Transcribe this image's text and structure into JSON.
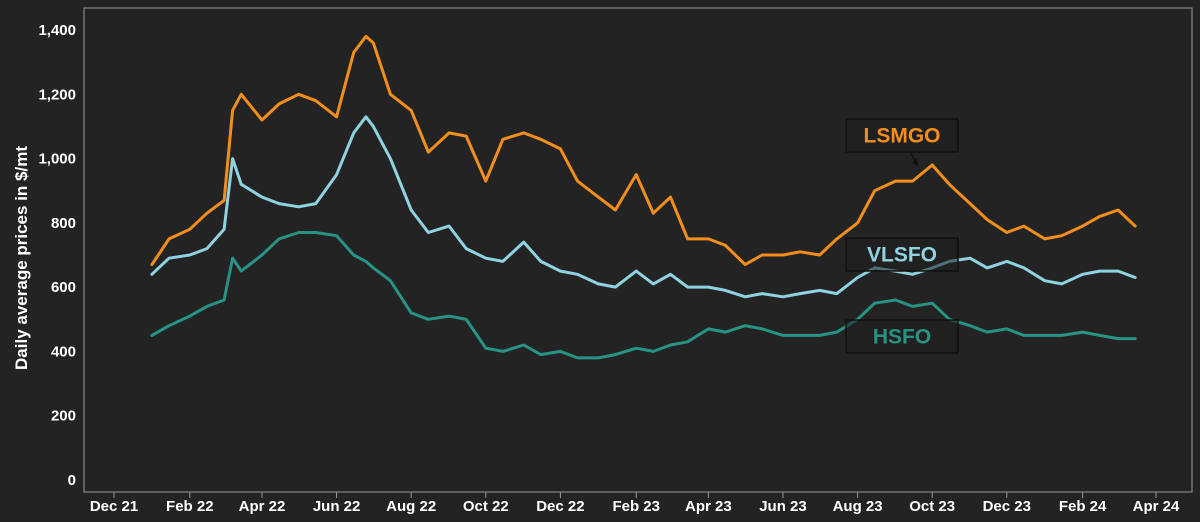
{
  "chart_data": {
    "type": "line",
    "title": "",
    "xlabel": "",
    "ylabel": "Daily average prices in $/mt",
    "ylim": [
      0,
      1400
    ],
    "yticks": [
      0,
      200,
      400,
      600,
      800,
      1000,
      1200,
      1400
    ],
    "ytick_labels": [
      "0",
      "200",
      "400",
      "600",
      "800",
      "1,000",
      "1,200",
      "1,400"
    ],
    "xlim": [
      "2021-12-01",
      "2024-04-01"
    ],
    "xticks": [
      "2021-12",
      "2022-02",
      "2022-04",
      "2022-06",
      "2022-08",
      "2022-10",
      "2022-12",
      "2023-02",
      "2023-04",
      "2023-06",
      "2023-08",
      "2023-10",
      "2023-12",
      "2024-02",
      "2024-04"
    ],
    "xtick_labels": [
      "Dec 21",
      "Feb 22",
      "Apr 22",
      "Jun 22",
      "Aug 22",
      "Oct 22",
      "Dec 22",
      "Feb 23",
      "Apr 23",
      "Jun 23",
      "Aug 23",
      "Oct 23",
      "Dec 23",
      "Feb 24",
      "Apr 24"
    ],
    "grid": false,
    "legend": "none",
    "x": [
      "2022-01-01",
      "2022-01-15",
      "2022-02-01",
      "2022-02-15",
      "2022-03-01",
      "2022-03-08",
      "2022-03-15",
      "2022-04-01",
      "2022-04-15",
      "2022-05-01",
      "2022-05-15",
      "2022-06-01",
      "2022-06-15",
      "2022-06-25",
      "2022-07-01",
      "2022-07-15",
      "2022-08-01",
      "2022-08-15",
      "2022-09-01",
      "2022-09-15",
      "2022-10-01",
      "2022-10-15",
      "2022-11-01",
      "2022-11-15",
      "2022-12-01",
      "2022-12-15",
      "2023-01-01",
      "2023-01-15",
      "2023-02-01",
      "2023-02-15",
      "2023-03-01",
      "2023-03-15",
      "2023-04-01",
      "2023-04-15",
      "2023-05-01",
      "2023-05-15",
      "2023-06-01",
      "2023-06-15",
      "2023-07-01",
      "2023-07-15",
      "2023-08-01",
      "2023-08-15",
      "2023-09-01",
      "2023-09-15",
      "2023-10-01",
      "2023-10-15",
      "2023-11-01",
      "2023-11-15",
      "2023-12-01",
      "2023-12-15",
      "2024-01-01",
      "2024-01-15",
      "2024-02-01",
      "2024-02-15",
      "2024-03-01",
      "2024-03-15"
    ],
    "series": [
      {
        "name": "LSMGO",
        "color": "#f28e1c",
        "values": [
          670,
          750,
          780,
          830,
          870,
          1150,
          1200,
          1120,
          1170,
          1200,
          1180,
          1130,
          1330,
          1380,
          1360,
          1200,
          1150,
          1020,
          1080,
          1070,
          930,
          1060,
          1080,
          1060,
          1030,
          930,
          880,
          840,
          950,
          830,
          880,
          750,
          750,
          730,
          670,
          700,
          700,
          710,
          700,
          750,
          800,
          900,
          930,
          930,
          980,
          920,
          860,
          810,
          770,
          790,
          750,
          760,
          790,
          820,
          840,
          790
        ]
      },
      {
        "name": "VLSFO",
        "color": "#8fd3e0",
        "values": [
          640,
          690,
          700,
          720,
          780,
          1000,
          920,
          880,
          860,
          850,
          860,
          950,
          1080,
          1130,
          1100,
          1000,
          840,
          770,
          790,
          720,
          690,
          680,
          740,
          680,
          650,
          640,
          610,
          600,
          650,
          610,
          640,
          600,
          600,
          590,
          570,
          580,
          570,
          580,
          590,
          580,
          630,
          660,
          650,
          640,
          660,
          680,
          690,
          660,
          680,
          660,
          620,
          610,
          640,
          650,
          650,
          630
        ]
      },
      {
        "name": "HSFO",
        "color": "#279384",
        "values": [
          450,
          480,
          510,
          540,
          560,
          690,
          650,
          700,
          750,
          770,
          770,
          760,
          700,
          680,
          660,
          620,
          520,
          500,
          510,
          500,
          410,
          400,
          420,
          390,
          400,
          380,
          380,
          390,
          410,
          400,
          420,
          430,
          470,
          460,
          480,
          470,
          450,
          450,
          450,
          460,
          500,
          550,
          560,
          540,
          550,
          500,
          480,
          460,
          470,
          450,
          450,
          450,
          460,
          450,
          440,
          440
        ]
      }
    ],
    "annotations": [
      {
        "text": "LSMGO",
        "series": "LSMGO"
      },
      {
        "text": "VLSFO",
        "series": "VLSFO"
      },
      {
        "text": "HSFO",
        "series": "HSFO"
      }
    ]
  }
}
